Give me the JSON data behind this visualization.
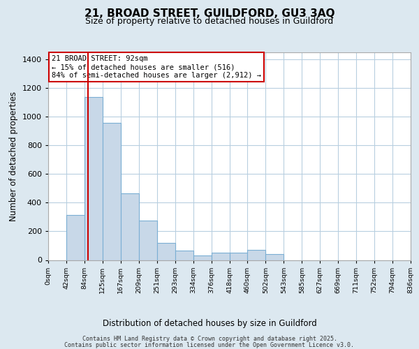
{
  "title_line1": "21, BROAD STREET, GUILDFORD, GU3 3AQ",
  "title_line2": "Size of property relative to detached houses in Guildford",
  "xlabel": "Distribution of detached houses by size in Guildford",
  "ylabel": "Number of detached properties",
  "bar_values": [
    0,
    316,
    1139,
    960,
    464,
    275,
    120,
    67,
    30,
    50,
    50,
    70,
    40,
    0,
    0,
    0,
    0,
    0,
    0,
    0
  ],
  "categories": [
    "0sqm",
    "42sqm",
    "84sqm",
    "125sqm",
    "167sqm",
    "209sqm",
    "251sqm",
    "293sqm",
    "334sqm",
    "376sqm",
    "418sqm",
    "460sqm",
    "502sqm",
    "543sqm",
    "585sqm",
    "627sqm",
    "669sqm",
    "711sqm",
    "752sqm",
    "794sqm",
    "836sqm"
  ],
  "bar_color": "#c8d8e8",
  "bar_edge_color": "#7bafd4",
  "property_line_color": "#cc0000",
  "annotation_text": "21 BROAD STREET: 92sqm\n← 15% of detached houses are smaller (516)\n84% of semi-detached houses are larger (2,912) →",
  "annotation_box_color": "#cc0000",
  "annotation_bg": "white",
  "ylim": [
    0,
    1450
  ],
  "yticks": [
    0,
    200,
    400,
    600,
    800,
    1000,
    1200,
    1400
  ],
  "footer_line1": "Contains HM Land Registry data © Crown copyright and database right 2025.",
  "footer_line2": "Contains public sector information licensed under the Open Government Licence v3.0.",
  "bg_color": "#dce8f0",
  "plot_bg_color": "#ffffff",
  "grid_color": "#b8cfe0"
}
